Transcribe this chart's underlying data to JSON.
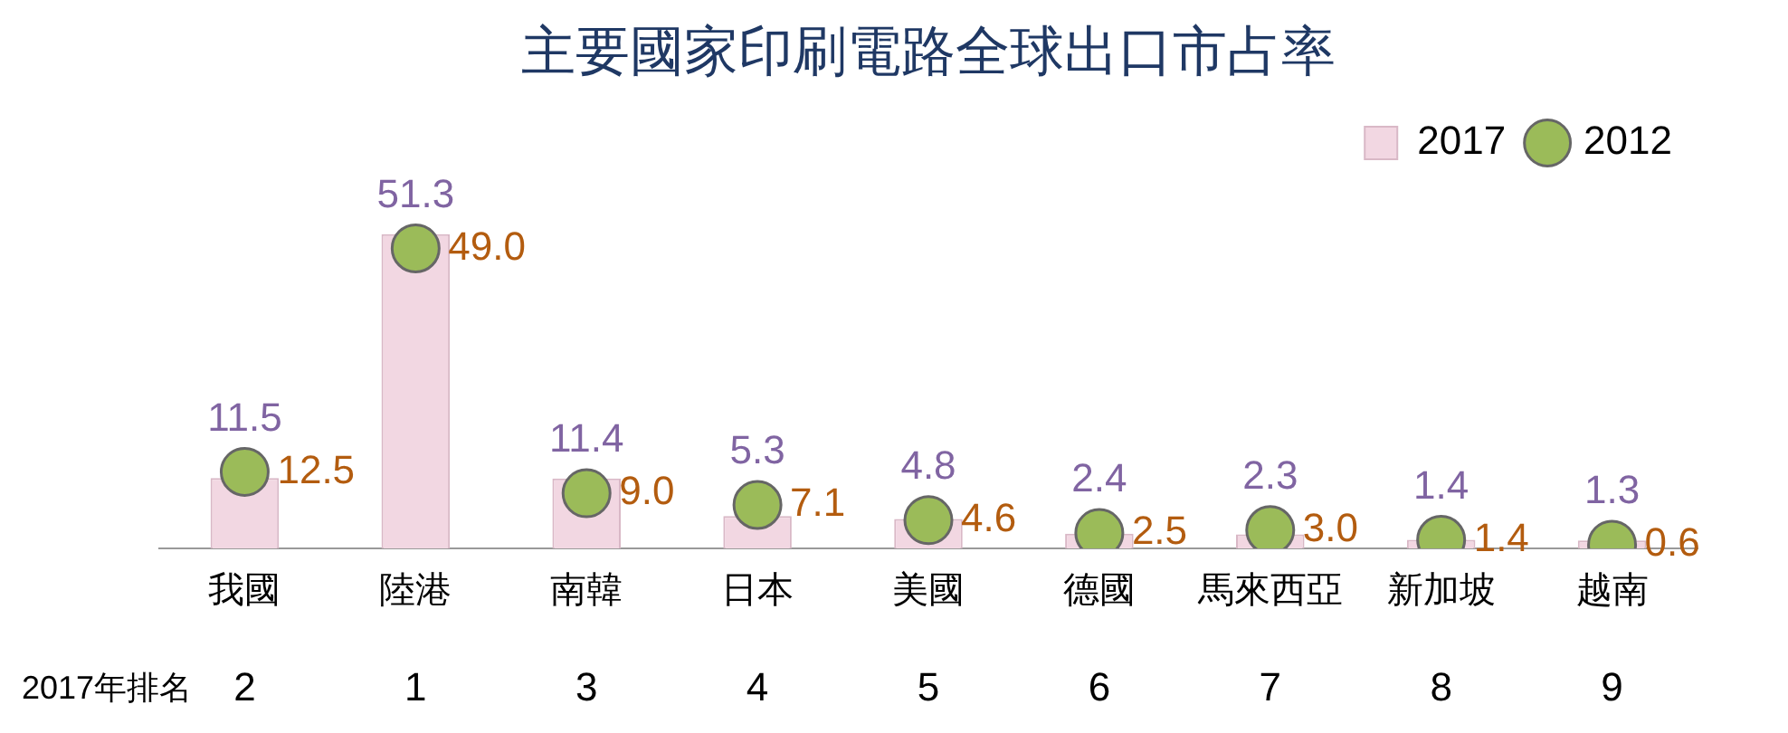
{
  "chart_data": {
    "type": "bar",
    "title": "主要國家印刷電路全球出口市占率",
    "categories": [
      "我國",
      "陸港",
      "南韓",
      "日本",
      "美國",
      "德國",
      "馬來西亞",
      "新加坡",
      "越南"
    ],
    "series": [
      {
        "name": "2017",
        "type": "bar",
        "color": "#f2d7e2",
        "values": [
          11.5,
          51.3,
          11.4,
          5.3,
          4.8,
          2.4,
          2.3,
          1.4,
          1.3
        ]
      },
      {
        "name": "2012",
        "type": "scatter",
        "color": "#9bbb59",
        "x": [
          "我國",
          "陸港",
          "南韓",
          "日本",
          "美國",
          "德國",
          "馬來西亞",
          "新加坡",
          "越南"
        ],
        "values": [
          12.5,
          49.0,
          9.0,
          7.1,
          4.6,
          2.5,
          3.0,
          1.4,
          0.6
        ],
        "value_labels": [
          "12.5",
          "49.0",
          "9.0",
          "7.1",
          "4.6",
          "2.5",
          "3.0",
          "1.4",
          "0.6"
        ]
      }
    ],
    "data_labels": true,
    "legend": "top right",
    "marker": "circle",
    "grid": false,
    "annotations": [
      "2017年排名",
      "2",
      "1",
      "3",
      "4",
      "5",
      "6",
      "7",
      "8",
      "9"
    ]
  }
}
